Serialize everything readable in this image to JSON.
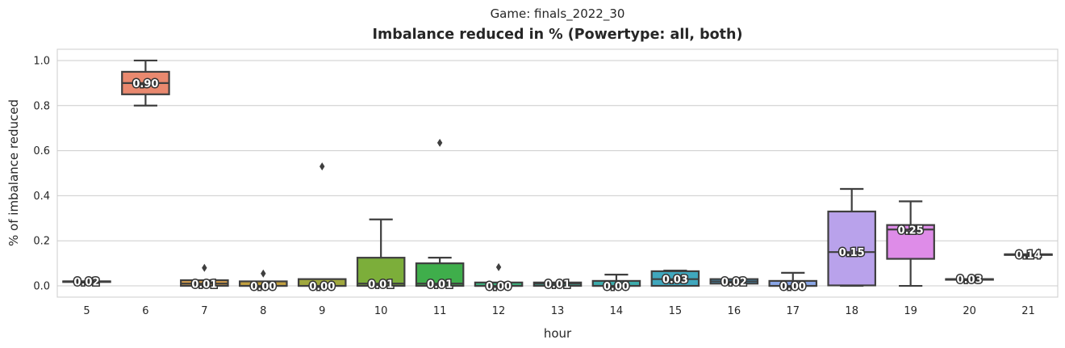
{
  "chart_data": {
    "type": "box",
    "suptitle": "Game: finals_2022_30",
    "title": "Imbalance reduced in % (Powertype: all, both)",
    "xlabel": "hour",
    "ylabel": "% of imbalance reduced",
    "ylim": [
      -0.05,
      1.05
    ],
    "yticks": [
      0.0,
      0.2,
      0.4,
      0.6,
      0.8,
      1.0
    ],
    "ytick_labels": [
      "0.0",
      "0.2",
      "0.4",
      "0.6",
      "0.8",
      "1.0"
    ],
    "grid": "horizontal",
    "categories": [
      "5",
      "6",
      "7",
      "8",
      "9",
      "10",
      "11",
      "12",
      "13",
      "14",
      "15",
      "16",
      "17",
      "18",
      "19",
      "20",
      "21"
    ],
    "boxes": [
      {
        "hour": "5",
        "color": "#e8888a",
        "whislo": 0.02,
        "q1": 0.02,
        "med": 0.02,
        "q3": 0.02,
        "whishi": 0.02,
        "fliers": [],
        "median_label": "0.02"
      },
      {
        "hour": "6",
        "color": "#e9896f",
        "whislo": 0.8,
        "q1": 0.85,
        "med": 0.9,
        "q3": 0.95,
        "whishi": 1.0,
        "fliers": [],
        "median_label": "0.90"
      },
      {
        "hour": "7",
        "color": "#d89f4c",
        "whislo": 0.0,
        "q1": 0.0,
        "med": 0.01,
        "q3": 0.025,
        "whishi": 0.025,
        "fliers": [
          0.08
        ],
        "median_label": "0.01"
      },
      {
        "hour": "8",
        "color": "#c2a040",
        "whislo": 0.0,
        "q1": 0.0,
        "med": 0.0,
        "q3": 0.02,
        "whishi": 0.02,
        "fliers": [
          0.055
        ],
        "median_label": "0.00"
      },
      {
        "hour": "9",
        "color": "#a0a83e",
        "whislo": 0.0,
        "q1": 0.0,
        "med": 0.0,
        "q3": 0.03,
        "whishi": 0.03,
        "fliers": [
          0.53
        ],
        "median_label": "0.00"
      },
      {
        "hour": "10",
        "color": "#7cae3a",
        "whislo": 0.0,
        "q1": 0.0,
        "med": 0.01,
        "q3": 0.125,
        "whishi": 0.295,
        "fliers": [],
        "median_label": "0.01"
      },
      {
        "hour": "11",
        "color": "#3fae4b",
        "whislo": 0.0,
        "q1": 0.0,
        "med": 0.01,
        "q3": 0.1,
        "whishi": 0.125,
        "fliers": [
          0.635
        ],
        "median_label": "0.01"
      },
      {
        "hour": "12",
        "color": "#3db07c",
        "whislo": 0.0,
        "q1": 0.0,
        "med": 0.0,
        "q3": 0.015,
        "whishi": 0.015,
        "fliers": [
          0.083
        ],
        "median_label": "0.00"
      },
      {
        "hour": "13",
        "color": "#3eaf9a",
        "whislo": 0.0,
        "q1": 0.0,
        "med": 0.01,
        "q3": 0.015,
        "whishi": 0.015,
        "fliers": [],
        "median_label": "0.01"
      },
      {
        "hour": "14",
        "color": "#3dabab",
        "whislo": 0.0,
        "q1": 0.0,
        "med": 0.0,
        "q3": 0.022,
        "whishi": 0.05,
        "fliers": [],
        "median_label": "0.00"
      },
      {
        "hour": "15",
        "color": "#40a7bd",
        "whislo": 0.0,
        "q1": 0.0,
        "med": 0.03,
        "q3": 0.065,
        "whishi": 0.068,
        "fliers": [],
        "median_label": "0.03"
      },
      {
        "hour": "16",
        "color": "#45a1d2",
        "whislo": 0.01,
        "q1": 0.01,
        "med": 0.02,
        "q3": 0.03,
        "whishi": 0.03,
        "fliers": [],
        "median_label": "0.02"
      },
      {
        "hour": "17",
        "color": "#8aa6e6",
        "whislo": 0.0,
        "q1": 0.0,
        "med": 0.0,
        "q3": 0.022,
        "whishi": 0.058,
        "fliers": [],
        "median_label": "0.00"
      },
      {
        "hour": "18",
        "color": "#b9a2eb",
        "whislo": 0.0,
        "q1": 0.002,
        "med": 0.15,
        "q3": 0.33,
        "whishi": 0.43,
        "fliers": [],
        "median_label": "0.15"
      },
      {
        "hour": "19",
        "color": "#de8ce8",
        "whislo": 0.0,
        "q1": 0.12,
        "med": 0.25,
        "q3": 0.27,
        "whishi": 0.375,
        "fliers": [],
        "median_label": "0.25"
      },
      {
        "hour": "20",
        "color": "#e48ccf",
        "whislo": 0.03,
        "q1": 0.03,
        "med": 0.03,
        "q3": 0.03,
        "whishi": 0.03,
        "fliers": [],
        "median_label": "0.03"
      },
      {
        "hour": "21",
        "color": "#e88ab0",
        "whislo": 0.14,
        "q1": 0.14,
        "med": 0.14,
        "q3": 0.14,
        "whishi": 0.14,
        "fliers": [],
        "median_label": "0.14"
      }
    ]
  }
}
